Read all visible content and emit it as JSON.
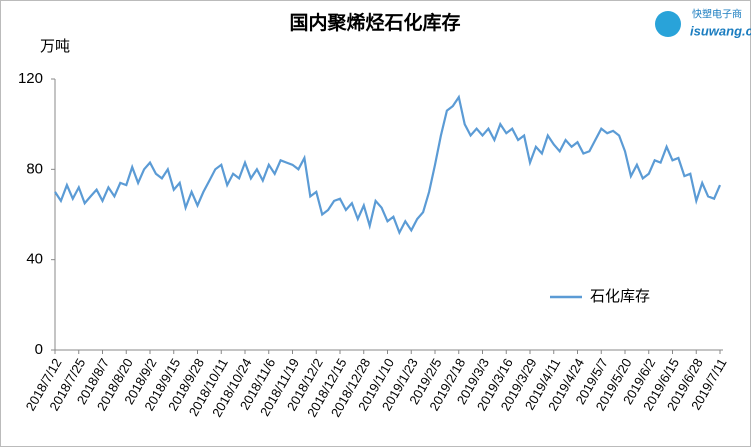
{
  "chart_data": {
    "type": "line",
    "title": "国内聚烯烃石化库存",
    "y_unit": "万吨",
    "logo": {
      "cn": "快塑电子商",
      "en": "isuwang.co"
    },
    "categories": [
      "2018/7/12",
      null,
      null,
      null,
      "2018/7/25",
      null,
      null,
      null,
      "2018/8/7",
      null,
      null,
      null,
      "2018/8/20",
      null,
      null,
      null,
      "2018/9/2",
      null,
      null,
      null,
      "2018/9/15",
      null,
      null,
      null,
      "2018/9/28",
      null,
      null,
      null,
      "2018/10/11",
      null,
      null,
      null,
      "2018/10/24",
      null,
      null,
      null,
      "2018/11/6",
      null,
      null,
      null,
      "2018/11/19",
      null,
      null,
      null,
      "2018/12/2",
      null,
      null,
      null,
      "2018/12/15",
      null,
      null,
      null,
      "2018/12/28",
      null,
      null,
      null,
      "2019/1/10",
      null,
      null,
      null,
      "2019/1/23",
      null,
      null,
      null,
      "2019/2/5",
      null,
      null,
      null,
      "2019/2/18",
      null,
      null,
      null,
      "2019/3/3",
      null,
      null,
      null,
      "2019/3/16",
      null,
      null,
      null,
      "2019/3/29",
      null,
      null,
      null,
      "2019/4/11",
      null,
      null,
      null,
      "2019/4/24",
      null,
      null,
      null,
      "2019/5/7",
      null,
      null,
      null,
      "2019/5/20",
      null,
      null,
      null,
      "2019/6/2",
      null,
      null,
      null,
      "2019/6/15",
      null,
      null,
      null,
      "2019/6/28",
      null,
      null,
      null,
      "2019/7/11"
    ],
    "series": [
      {
        "name": "石化库存",
        "color": "#5b9bd5",
        "values": [
          70,
          66,
          73,
          67,
          72,
          65,
          68,
          71,
          66,
          72,
          68,
          74,
          73,
          81,
          74,
          80,
          83,
          78,
          76,
          80,
          71,
          74,
          63,
          70,
          64,
          70,
          75,
          80,
          82,
          73,
          78,
          76,
          83,
          76,
          80,
          75,
          82,
          78,
          84,
          83,
          82,
          80,
          85,
          68,
          70,
          60,
          62,
          66,
          67,
          62,
          65,
          58,
          64,
          55,
          66,
          63,
          57,
          59,
          52,
          57,
          53,
          58,
          61,
          70,
          82,
          95,
          106,
          108,
          112,
          100,
          95,
          98,
          95,
          98,
          93,
          100,
          96,
          98,
          93,
          95,
          83,
          90,
          87,
          95,
          91,
          88,
          93,
          90,
          92,
          87,
          88,
          93,
          98,
          96,
          97,
          95,
          88,
          77,
          82,
          76,
          78,
          84,
          83,
          90,
          84,
          85,
          77,
          78,
          66,
          74,
          68,
          67,
          73
        ]
      }
    ],
    "ylim": [
      0,
      120
    ],
    "yticks": [
      0,
      40,
      80,
      120
    ],
    "legend": "right"
  }
}
